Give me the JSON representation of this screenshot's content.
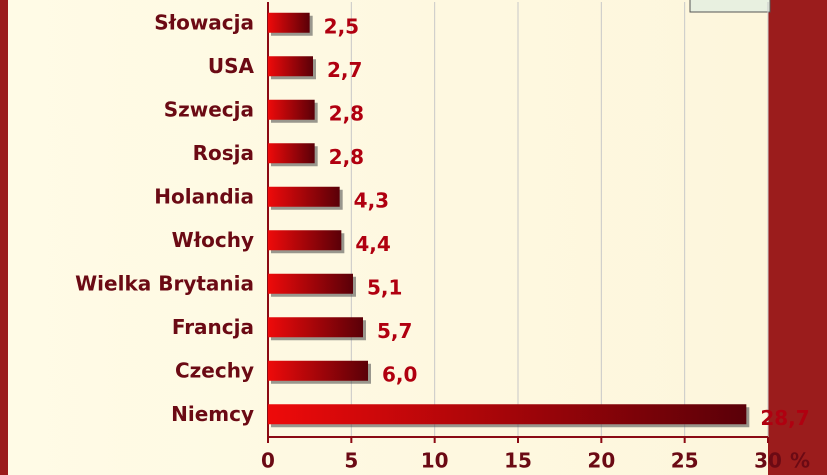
{
  "chart_data": {
    "type": "bar",
    "orientation": "horizontal",
    "categories": [
      "Słowacja",
      "USA",
      "Szwecja",
      "Rosja",
      "Holandia",
      "Włochy",
      "Wielka Brytania",
      "Francja",
      "Czechy",
      "Niemcy"
    ],
    "values": [
      2.5,
      2.7,
      2.8,
      2.8,
      4.3,
      4.4,
      5.1,
      5.7,
      6.0,
      28.7
    ],
    "value_labels": [
      "2,5",
      "2,7",
      "2,8",
      "2,8",
      "4,3",
      "4,4",
      "5,1",
      "5,7",
      "6,0",
      "28,7"
    ],
    "color": "#ee0a0a",
    "xlabel": "%",
    "xlim": [
      0,
      30
    ],
    "xticks": [
      0,
      5,
      10,
      15,
      20,
      25,
      30
    ],
    "grid": true
  }
}
